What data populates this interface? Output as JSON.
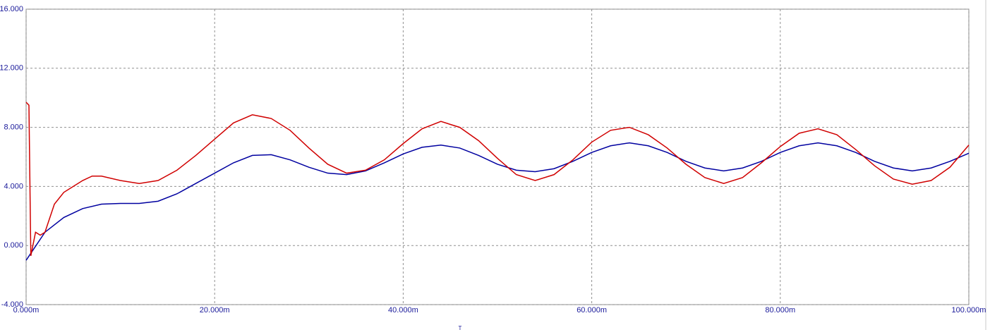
{
  "chart_data": {
    "type": "line",
    "x_label": "T",
    "xlim": [
      0,
      100
    ],
    "xticks": [
      {
        "value": 0,
        "label": "0.000m"
      },
      {
        "value": 20,
        "label": "20.000m"
      },
      {
        "value": 40,
        "label": "40.000m"
      },
      {
        "value": 60,
        "label": "60.000m"
      },
      {
        "value": 80,
        "label": "80.000m"
      },
      {
        "value": 100,
        "label": "100.000m"
      }
    ],
    "ylim": [
      -4,
      16
    ],
    "yticks": [
      {
        "value": -4,
        "label": "-4.000"
      },
      {
        "value": 0,
        "label": "0.000"
      },
      {
        "value": 4,
        "label": "4.000"
      },
      {
        "value": 8,
        "label": "8.000"
      },
      {
        "value": 12,
        "label": "12.000"
      },
      {
        "value": 16,
        "label": "16.000"
      }
    ],
    "grid": true,
    "series": [
      {
        "color": "#0000a0",
        "x": [
          0,
          2,
          4,
          6,
          8,
          10,
          12,
          14,
          16,
          18,
          20,
          22,
          24,
          26,
          28,
          30,
          32,
          34,
          36,
          38,
          40,
          42,
          44,
          46,
          48,
          50,
          52,
          54,
          56,
          58,
          60,
          62,
          64,
          66,
          68,
          70,
          72,
          74,
          76,
          78,
          80,
          82,
          84,
          86,
          88,
          90,
          92,
          94,
          96,
          98,
          100
        ],
        "values": [
          -1.0,
          0.9,
          1.9,
          2.5,
          2.8,
          2.85,
          2.85,
          3.0,
          3.5,
          4.2,
          4.9,
          5.6,
          6.1,
          6.15,
          5.8,
          5.3,
          4.9,
          4.8,
          5.05,
          5.6,
          6.2,
          6.65,
          6.8,
          6.6,
          6.1,
          5.5,
          5.1,
          5.0,
          5.2,
          5.7,
          6.3,
          6.75,
          6.95,
          6.75,
          6.3,
          5.7,
          5.25,
          5.05,
          5.25,
          5.7,
          6.3,
          6.75,
          6.95,
          6.75,
          6.3,
          5.7,
          5.25,
          5.05,
          5.25,
          5.7,
          6.25
        ]
      },
      {
        "color": "#d00000",
        "x": [
          0,
          0.3,
          0.5,
          1,
          1.5,
          2,
          3,
          4,
          6,
          7,
          8,
          10,
          12,
          14,
          16,
          18,
          20,
          22,
          24,
          26,
          28,
          30,
          32,
          34,
          36,
          38,
          40,
          42,
          44,
          46,
          48,
          50,
          52,
          54,
          56,
          58,
          60,
          62,
          64,
          66,
          68,
          70,
          72,
          74,
          76,
          78,
          80,
          82,
          84,
          86,
          88,
          90,
          92,
          94,
          96,
          98,
          100
        ],
        "values": [
          9.7,
          9.5,
          -0.7,
          0.9,
          0.7,
          0.9,
          2.8,
          3.6,
          4.4,
          4.7,
          4.7,
          4.4,
          4.2,
          4.4,
          5.1,
          6.1,
          7.2,
          8.3,
          8.85,
          8.6,
          7.8,
          6.6,
          5.5,
          4.9,
          5.1,
          5.8,
          6.9,
          7.9,
          8.4,
          8.0,
          7.1,
          5.9,
          4.8,
          4.4,
          4.8,
          5.8,
          7.0,
          7.8,
          8.0,
          7.5,
          6.6,
          5.5,
          4.6,
          4.2,
          4.6,
          5.6,
          6.7,
          7.6,
          7.9,
          7.5,
          6.5,
          5.4,
          4.5,
          4.15,
          4.4,
          5.3,
          6.8
        ]
      }
    ]
  }
}
